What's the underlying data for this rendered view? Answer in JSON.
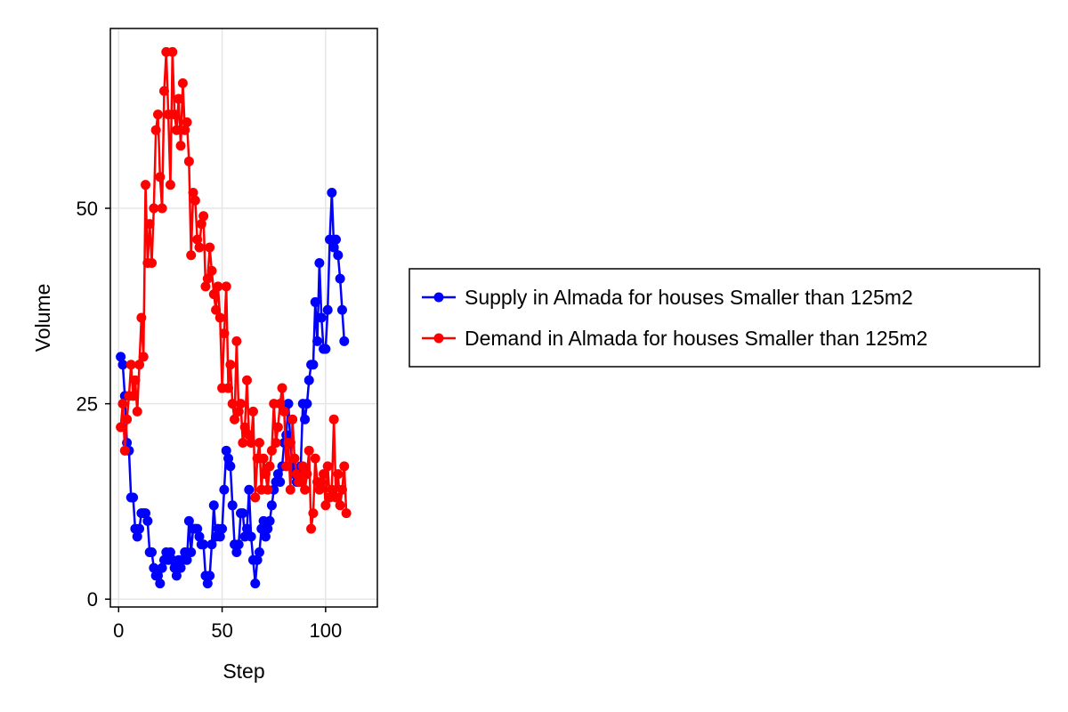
{
  "chart_data": {
    "type": "line",
    "title": "",
    "xlabel": "Step",
    "ylabel": "Volume",
    "xlim": [
      -4,
      125
    ],
    "ylim": [
      -1,
      73
    ],
    "xticks": [
      0,
      50,
      100
    ],
    "yticks": [
      0,
      25,
      50
    ],
    "grid": true,
    "legend_position": "right",
    "series": [
      {
        "name": "Supply in Almada for houses Smaller than 125m2",
        "color": "#0000ff",
        "marker": "circle",
        "values": [
          31,
          30,
          26,
          20,
          19,
          13,
          13,
          9,
          8,
          9,
          11,
          11,
          11,
          10,
          6,
          6,
          4,
          3,
          3,
          2,
          4,
          5,
          6,
          5,
          6,
          5,
          4,
          3,
          5,
          4,
          5,
          6,
          5,
          10,
          6,
          9,
          9,
          9,
          8,
          7,
          7,
          3,
          2,
          3,
          7,
          12,
          8,
          9,
          8,
          9,
          14,
          19,
          18,
          17,
          12,
          7,
          6,
          7,
          11,
          11,
          8,
          9,
          14,
          8,
          5,
          2,
          5,
          6,
          9,
          10,
          8,
          9,
          10,
          12,
          14,
          15,
          16,
          15,
          17,
          20,
          21,
          25,
          20,
          17,
          16,
          15,
          16,
          17,
          25,
          23,
          25,
          28,
          30,
          30,
          38,
          33,
          43,
          36,
          32,
          32,
          37,
          46,
          52,
          45,
          46,
          44,
          41,
          37,
          33
        ]
      },
      {
        "name": "Demand in Almada for houses Smaller than 125m2",
        "color": "#ff0000",
        "marker": "circle",
        "values": [
          22,
          25,
          19,
          23,
          26,
          30,
          26,
          28,
          24,
          30,
          36,
          31,
          53,
          43,
          48,
          43,
          50,
          60,
          62,
          54,
          50,
          65,
          70,
          62,
          53,
          70,
          62,
          60,
          64,
          58,
          66,
          60,
          61,
          56,
          44,
          52,
          51,
          46,
          45,
          48,
          49,
          40,
          41,
          45,
          42,
          39,
          37,
          40,
          36,
          27,
          34,
          40,
          27,
          30,
          25,
          23,
          33,
          24,
          25,
          20,
          22,
          28,
          21,
          20,
          24,
          13,
          18,
          20,
          14,
          18,
          16,
          14,
          17,
          19,
          25,
          20,
          22,
          25,
          27,
          24,
          17,
          20,
          14,
          23,
          18,
          16,
          15,
          15,
          17,
          14,
          16,
          19,
          9,
          11,
          18,
          15,
          14,
          15,
          16,
          12,
          17,
          13,
          14,
          23,
          13,
          16,
          12,
          14,
          17,
          11
        ]
      }
    ]
  }
}
